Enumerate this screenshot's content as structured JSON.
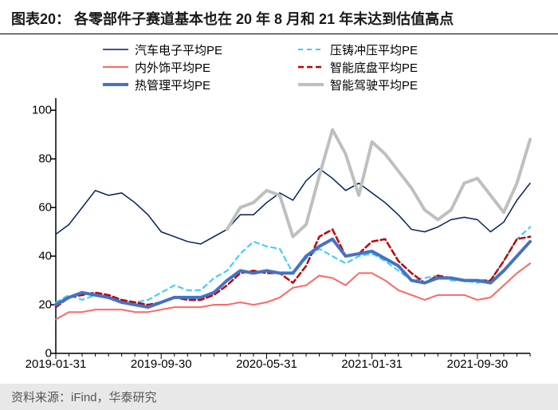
{
  "title": "图表20：  各零部件子赛道基本也在 20 年 8 月和 21 年末达到估值高点",
  "source": "资料来源：iFind，华泰研究",
  "chart": {
    "type": "line",
    "ylim": [
      0,
      105
    ],
    "yticks": [
      0,
      20,
      40,
      60,
      80,
      100
    ],
    "xticks": [
      "2019-01-31",
      "2019-09-30",
      "2020-05-31",
      "2021-01-31",
      "2021-09-30"
    ],
    "xtick_idx": [
      0,
      8,
      16,
      24,
      32
    ],
    "n_points": 37,
    "background_color": "#ffffff",
    "axis_color": "#000000",
    "tick_color": "#000000",
    "label_fontsize": 15,
    "title_fontsize": 18,
    "series": [
      {
        "name": "汽车电子平均PE",
        "color": "#002060",
        "width": 1.5,
        "dash": "",
        "y": [
          49,
          53,
          60,
          67,
          65,
          66,
          62,
          57,
          50,
          48,
          46,
          45,
          48,
          51,
          57,
          57,
          62,
          66,
          63,
          71,
          76,
          72,
          67,
          70,
          66,
          62,
          57,
          51,
          50,
          52,
          55,
          56,
          55,
          50,
          54,
          63,
          70
        ]
      },
      {
        "name": "压铸冲压平均PE",
        "color": "#33ccff",
        "width": 2,
        "dash": "6,5",
        "y": [
          21,
          24,
          22,
          24,
          23,
          21,
          21,
          22,
          25,
          28,
          26,
          26,
          31,
          34,
          41,
          46,
          44,
          43,
          33,
          39,
          43,
          40,
          37,
          40,
          41,
          38,
          34,
          30,
          31,
          32,
          30,
          30,
          29,
          30,
          38,
          47,
          52
        ]
      },
      {
        "name": "内外饰平均PE",
        "color": "#ff6666",
        "width": 2,
        "dash": "",
        "y": [
          14,
          17,
          17,
          18,
          18,
          18,
          17,
          17,
          18,
          19,
          19,
          19,
          20,
          20,
          21,
          20,
          21,
          23,
          27,
          28,
          32,
          31,
          28,
          33,
          33,
          30,
          26,
          24,
          22,
          24,
          24,
          24,
          22,
          23,
          28,
          33,
          37
        ]
      },
      {
        "name": "智能底盘平均PE",
        "color": "#c00000",
        "width": 2.5,
        "dash": "7,4",
        "y": [
          19,
          23,
          24,
          25,
          24,
          22,
          21,
          20,
          21,
          23,
          22,
          22,
          24,
          28,
          33,
          34,
          33,
          33,
          29,
          36,
          48,
          51,
          40,
          41,
          46,
          47,
          38,
          33,
          29,
          32,
          31,
          30,
          30,
          30,
          38,
          47,
          48
        ]
      },
      {
        "name": "热管理平均PE",
        "color": "#4472c4",
        "width": 4,
        "dash": "",
        "y": [
          20,
          23,
          25,
          24,
          23,
          21,
          20,
          19,
          21,
          23,
          23,
          23,
          25,
          30,
          34,
          33,
          34,
          33,
          33,
          40,
          44,
          47,
          40,
          41,
          42,
          39,
          36,
          30,
          29,
          31,
          31,
          30,
          30,
          29,
          34,
          40,
          46
        ]
      },
      {
        "name": "智能驾驶平均PE",
        "color": "#bfbfbf",
        "width": 4,
        "dash": "",
        "start": 13,
        "y": [
          51,
          60,
          62,
          67,
          65,
          48,
          53,
          73,
          92,
          82,
          65,
          87,
          82,
          75,
          68,
          59,
          55,
          59,
          70,
          72,
          65,
          58,
          70,
          88
        ]
      }
    ]
  }
}
